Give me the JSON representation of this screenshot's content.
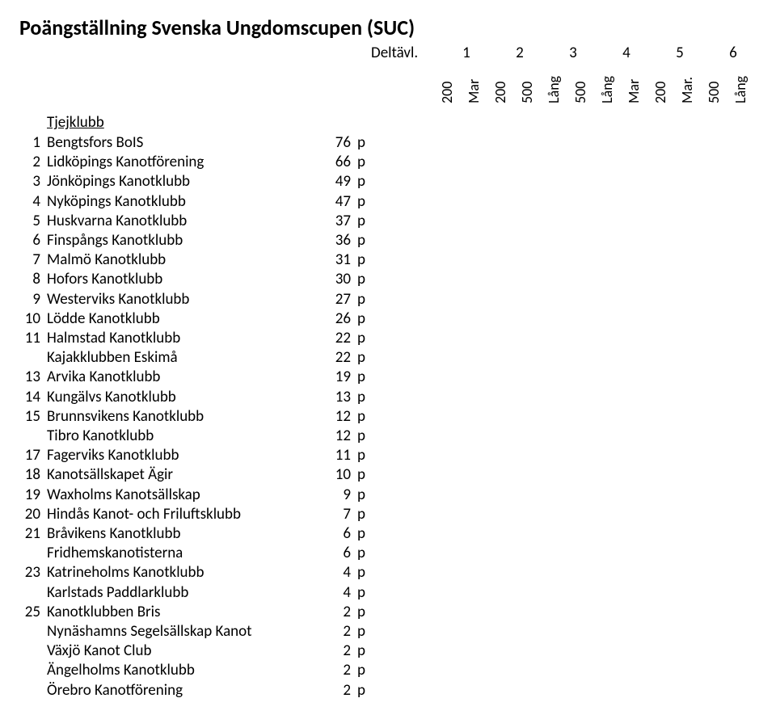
{
  "title": "Poängställning Svenska Ungdomscupen (SUC)",
  "deltavl_label": "Deltävl.",
  "deltavl_numbers": [
    "1",
    "2",
    "3",
    "4",
    "5",
    "6"
  ],
  "vertical_labels": [
    "200",
    "Mar",
    "200",
    "500",
    "Lång",
    "500",
    "Lång",
    "Mar",
    "200",
    "Mar.",
    "500",
    "Lång"
  ],
  "section_title": "Tjejklubb",
  "points_unit": "p",
  "rows": [
    {
      "rank": "1",
      "club": "Bengtsfors BoIS",
      "pts": "76"
    },
    {
      "rank": "2",
      "club": "Lidköpings Kanotförening",
      "pts": "66"
    },
    {
      "rank": "3",
      "club": "Jönköpings Kanotklubb",
      "pts": "49"
    },
    {
      "rank": "4",
      "club": "Nyköpings Kanotklubb",
      "pts": "47"
    },
    {
      "rank": "5",
      "club": "Huskvarna Kanotklubb",
      "pts": "37"
    },
    {
      "rank": "6",
      "club": "Finspångs Kanotklubb",
      "pts": "36"
    },
    {
      "rank": "7",
      "club": "Malmö Kanotklubb",
      "pts": "31"
    },
    {
      "rank": "8",
      "club": "Hofors Kanotklubb",
      "pts": "30"
    },
    {
      "rank": "9",
      "club": "Westerviks Kanotklubb",
      "pts": "27"
    },
    {
      "rank": "10",
      "club": "Lödde Kanotklubb",
      "pts": "26"
    },
    {
      "rank": "11",
      "club": "Halmstad Kanotklubb",
      "pts": "22"
    },
    {
      "rank": "",
      "club": "Kajakklubben Eskimå",
      "pts": "22"
    },
    {
      "rank": "13",
      "club": "Arvika Kanotklubb",
      "pts": "19"
    },
    {
      "rank": "14",
      "club": "Kungälvs Kanotklubb",
      "pts": "13"
    },
    {
      "rank": "15",
      "club": "Brunnsvikens Kanotklubb",
      "pts": "12"
    },
    {
      "rank": "",
      "club": "Tibro Kanotklubb",
      "pts": "12"
    },
    {
      "rank": "17",
      "club": "Fagerviks Kanotklubb",
      "pts": "11"
    },
    {
      "rank": "18",
      "club": "Kanotsällskapet Ägir",
      "pts": "10"
    },
    {
      "rank": "19",
      "club": "Waxholms Kanotsällskap",
      "pts": "9"
    },
    {
      "rank": "20",
      "club": "Hindås Kanot- och Friluftsklubb",
      "pts": "7"
    },
    {
      "rank": "21",
      "club": "Bråvikens Kanotklubb",
      "pts": "6"
    },
    {
      "rank": "",
      "club": "Fridhemskanotisterna",
      "pts": "6"
    },
    {
      "rank": "23",
      "club": "Katrineholms Kanotklubb",
      "pts": "4"
    },
    {
      "rank": "",
      "club": "Karlstads Paddlarklubb",
      "pts": "4"
    },
    {
      "rank": "25",
      "club": "Kanotklubben Bris",
      "pts": "2"
    },
    {
      "rank": "",
      "club": "Nynäshamns Segelsällskap Kanot",
      "pts": "2"
    },
    {
      "rank": "",
      "club": "Växjö Kanot Club",
      "pts": "2"
    },
    {
      "rank": "",
      "club": "Ängelholms Kanotklubb",
      "pts": "2"
    },
    {
      "rank": "",
      "club": "Örebro Kanotförening",
      "pts": "2"
    }
  ]
}
